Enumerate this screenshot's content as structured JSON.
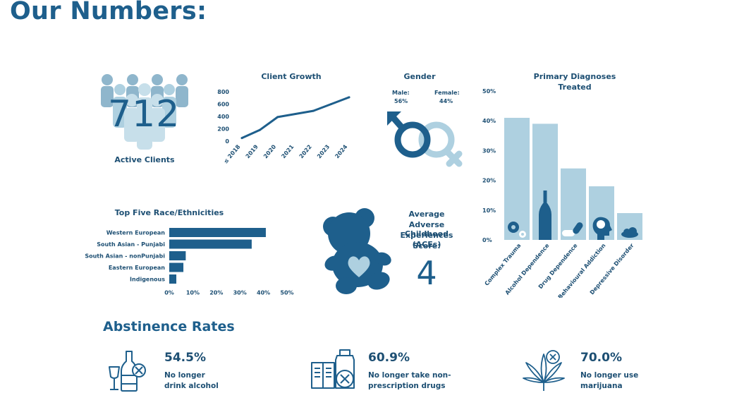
{
  "page_title": "Our Numbers:",
  "active_clients": {
    "number": "712",
    "label": "Active Clients",
    "icon": "people-group-icon"
  },
  "chart_data": [
    {
      "type": "line",
      "title": "Client Growth",
      "x": [
        "≤ 2018",
        "2019",
        "2020",
        "2021",
        "2022",
        "2023",
        "2024"
      ],
      "series": [
        {
          "values": [
            50,
            180,
            390,
            440,
            490,
            600,
            710
          ]
        }
      ],
      "y_ticks": [
        "0",
        "200",
        "400",
        "600",
        "800"
      ],
      "ylim": [
        0,
        800
      ],
      "color": "#1e5f8c"
    },
    {
      "type": "bar",
      "orientation": "horizontal",
      "title": "Top Five Race/Ethnicities",
      "categories": [
        "Western European",
        "South Asian - Punjabi",
        "South Asian - nonPunjabi",
        "Eastern European",
        "Indigenous"
      ],
      "values": [
        41,
        35,
        7,
        6,
        3
      ],
      "x_ticks": [
        "0%",
        "10%",
        "20%",
        "30%",
        "40%",
        "50%"
      ],
      "xlim": [
        0,
        50
      ],
      "color": "#1e5f8c"
    },
    {
      "type": "bar",
      "title": "Primary Diagnoses\nTreated",
      "title_lines": [
        "Primary Diagnoses",
        "Treated"
      ],
      "categories": [
        "Complex Trauma",
        "Alcohol Dependence",
        "Drug Dependence",
        "Behavioural Addiction",
        "Depressive Disorder"
      ],
      "values": [
        41,
        39,
        24,
        18,
        9
      ],
      "y_ticks": [
        "0%",
        "10%",
        "20%",
        "30%",
        "40%",
        "50%"
      ],
      "ylim": [
        0,
        50
      ],
      "color": "#aed0e0",
      "icons": [
        "gears-icon",
        "bottle-icon",
        "pills-icon",
        "head-icon",
        "cloud-icon"
      ]
    }
  ],
  "gender": {
    "title": "Gender",
    "male_label": "Male:",
    "male_value": "56%",
    "female_label": "Female:",
    "female_value": "44%",
    "male_color": "#1e5f8c",
    "female_color": "#aed0e0"
  },
  "aces": {
    "title_lines": [
      "Average",
      "Adverse Childhood",
      "Experiences (ACEs)",
      "Score:"
    ],
    "value": "4",
    "icon": "teddy-bear-icon"
  },
  "abstinence": {
    "title": "Abstinence Rates",
    "items": [
      {
        "value": "54.5%",
        "line1": "No longer",
        "line2": "drink alcohol",
        "icon": "no-alcohol-icon"
      },
      {
        "value": "60.9%",
        "line1": "No longer take non-",
        "line2": "prescription drugs",
        "icon": "no-drugs-icon"
      },
      {
        "value": "70.0%",
        "line1": "No longer use",
        "line2": "marijuana",
        "icon": "no-marijuana-icon"
      }
    ]
  },
  "colors": {
    "dark_blue": "#1e5f8c",
    "light_blue": "#aed0e0",
    "text_dark": "#1d4f73"
  }
}
